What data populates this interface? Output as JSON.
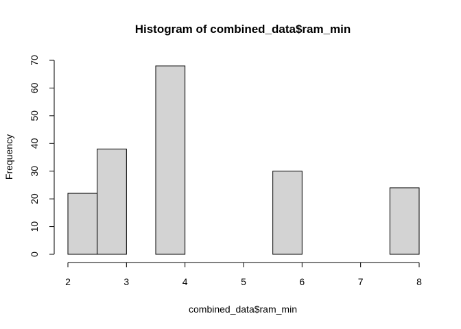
{
  "chart_data": {
    "type": "bar",
    "title": "Histogram of combined_data$ram_min",
    "xlabel": "combined_data$ram_min",
    "ylabel": "Frequency",
    "xlim": [
      2,
      8
    ],
    "ylim": [
      0,
      70
    ],
    "x_ticks": [
      "2",
      "3",
      "4",
      "5",
      "6",
      "7",
      "8"
    ],
    "y_ticks": [
      "0",
      "10",
      "20",
      "30",
      "40",
      "50",
      "60",
      "70"
    ],
    "bins": [
      {
        "start": 2.0,
        "end": 2.5,
        "count": 22
      },
      {
        "start": 2.5,
        "end": 3.0,
        "count": 38
      },
      {
        "start": 3.0,
        "end": 3.5,
        "count": 0
      },
      {
        "start": 3.5,
        "end": 4.0,
        "count": 68
      },
      {
        "start": 4.0,
        "end": 4.5,
        "count": 0
      },
      {
        "start": 4.5,
        "end": 5.0,
        "count": 0
      },
      {
        "start": 5.0,
        "end": 5.5,
        "count": 0
      },
      {
        "start": 5.5,
        "end": 6.0,
        "count": 30
      },
      {
        "start": 6.0,
        "end": 6.5,
        "count": 0
      },
      {
        "start": 6.5,
        "end": 7.0,
        "count": 0
      },
      {
        "start": 7.0,
        "end": 7.5,
        "count": 0
      },
      {
        "start": 7.5,
        "end": 8.0,
        "count": 24
      }
    ],
    "colors": {
      "bar_fill": "#d3d3d3",
      "bar_stroke": "#000000"
    },
    "grid": false
  }
}
